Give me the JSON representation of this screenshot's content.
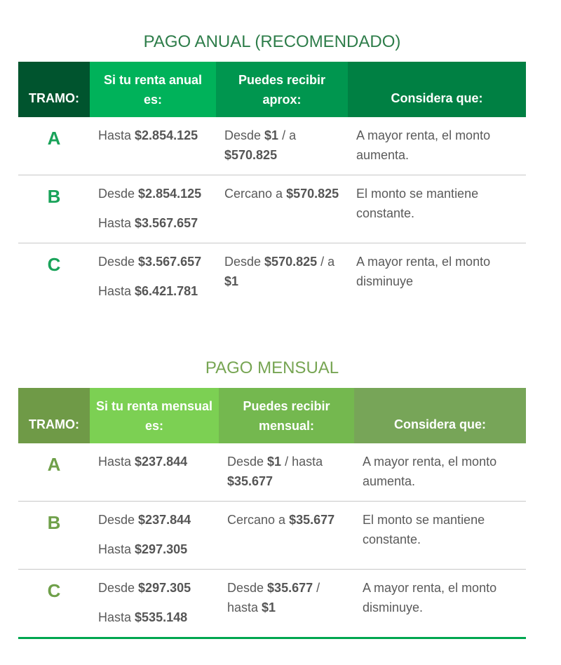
{
  "colors": {
    "annual_title": "#2e7d4a",
    "annual_letter": "#1aa35a",
    "annual_headers": [
      "#00542e",
      "#00b25a",
      "#00964f",
      "#008043"
    ],
    "monthly_title": "#77a553",
    "monthly_letter": "#6fa04a",
    "monthly_headers": [
      "#6f9a47",
      "#7cd053",
      "#74b84f",
      "#77a558"
    ]
  },
  "annual": {
    "title": "PAGO ANUAL (RECOMENDADO)",
    "headers": [
      "TRAMO:",
      "Si tu renta anual es:",
      "Puedes recibir aprox:",
      "Considera que:"
    ],
    "rows": [
      {
        "tramo": "A",
        "range": [
          [
            {
              "t": "Hasta ",
              "b": false
            },
            {
              "t": "$2.854.125",
              "b": true
            }
          ]
        ],
        "amount": [
          [
            {
              "t": "Desde ",
              "b": false
            },
            {
              "t": "$1",
              "b": true
            },
            {
              "t": " / a ",
              "b": false
            },
            {
              "t": "$570.825",
              "b": true
            }
          ]
        ],
        "note": [
          [
            {
              "t": "A mayor renta, el monto aumenta.",
              "b": false
            }
          ]
        ]
      },
      {
        "tramo": "B",
        "range": [
          [
            {
              "t": "Desde ",
              "b": false
            },
            {
              "t": "$2.854.125",
              "b": true
            }
          ],
          [
            {
              "t": "Hasta ",
              "b": false
            },
            {
              "t": "$3.567.657",
              "b": true
            }
          ]
        ],
        "amount": [
          [
            {
              "t": "Cercano a ",
              "b": false
            },
            {
              "t": "$570.825",
              "b": true
            }
          ]
        ],
        "note": [
          [
            {
              "t": "El monto se mantiene constante.",
              "b": false
            }
          ]
        ]
      },
      {
        "tramo": "C",
        "range": [
          [
            {
              "t": "Desde ",
              "b": false
            },
            {
              "t": "$3.567.657",
              "b": true
            }
          ],
          [
            {
              "t": "Hasta ",
              "b": false
            },
            {
              "t": "$6.421.781",
              "b": true
            }
          ]
        ],
        "amount": [
          [
            {
              "t": "Desde ",
              "b": false
            },
            {
              "t": "$570.825",
              "b": true
            },
            {
              "t": " / a ",
              "b": false
            },
            {
              "t": "$1",
              "b": true
            }
          ]
        ],
        "note": [
          [
            {
              "t": "A mayor renta, el monto disminuye",
              "b": false
            }
          ]
        ]
      }
    ]
  },
  "monthly": {
    "title": "PAGO MENSUAL",
    "headers": [
      "TRAMO:",
      "Si tu renta mensual es:",
      "Puedes recibir mensual:",
      "Considera que:"
    ],
    "rows": [
      {
        "tramo": "A",
        "range": [
          [
            {
              "t": "Hasta ",
              "b": false
            },
            {
              "t": "$237.844",
              "b": true
            }
          ]
        ],
        "amount": [
          [
            {
              "t": "Desde ",
              "b": false
            },
            {
              "t": "$1",
              "b": true
            },
            {
              "t": " / hasta ",
              "b": false
            },
            {
              "t": "$35.677",
              "b": true
            }
          ]
        ],
        "note": [
          [
            {
              "t": "A mayor renta, el monto aumenta.",
              "b": false
            }
          ]
        ]
      },
      {
        "tramo": "B",
        "range": [
          [
            {
              "t": "Desde ",
              "b": false
            },
            {
              "t": "$237.844",
              "b": true
            }
          ],
          [
            {
              "t": "Hasta ",
              "b": false
            },
            {
              "t": "$297.305",
              "b": true
            }
          ]
        ],
        "amount": [
          [
            {
              "t": "Cercano a ",
              "b": false
            },
            {
              "t": "$35.677",
              "b": true
            }
          ]
        ],
        "note": [
          [
            {
              "t": "El monto se mantiene constante.",
              "b": false
            }
          ]
        ]
      },
      {
        "tramo": "C",
        "range": [
          [
            {
              "t": "Desde ",
              "b": false
            },
            {
              "t": "$297.305",
              "b": true
            }
          ],
          [
            {
              "t": "Hasta ",
              "b": false
            },
            {
              "t": "$535.148",
              "b": true
            }
          ]
        ],
        "amount": [
          [
            {
              "t": "Desde ",
              "b": false
            },
            {
              "t": "$35.677",
              "b": true
            },
            {
              "t": " / hasta ",
              "b": false
            },
            {
              "t": "$1",
              "b": true
            }
          ]
        ],
        "note": [
          [
            {
              "t": "A mayor renta, el monto disminuye.",
              "b": false
            }
          ]
        ]
      }
    ]
  }
}
